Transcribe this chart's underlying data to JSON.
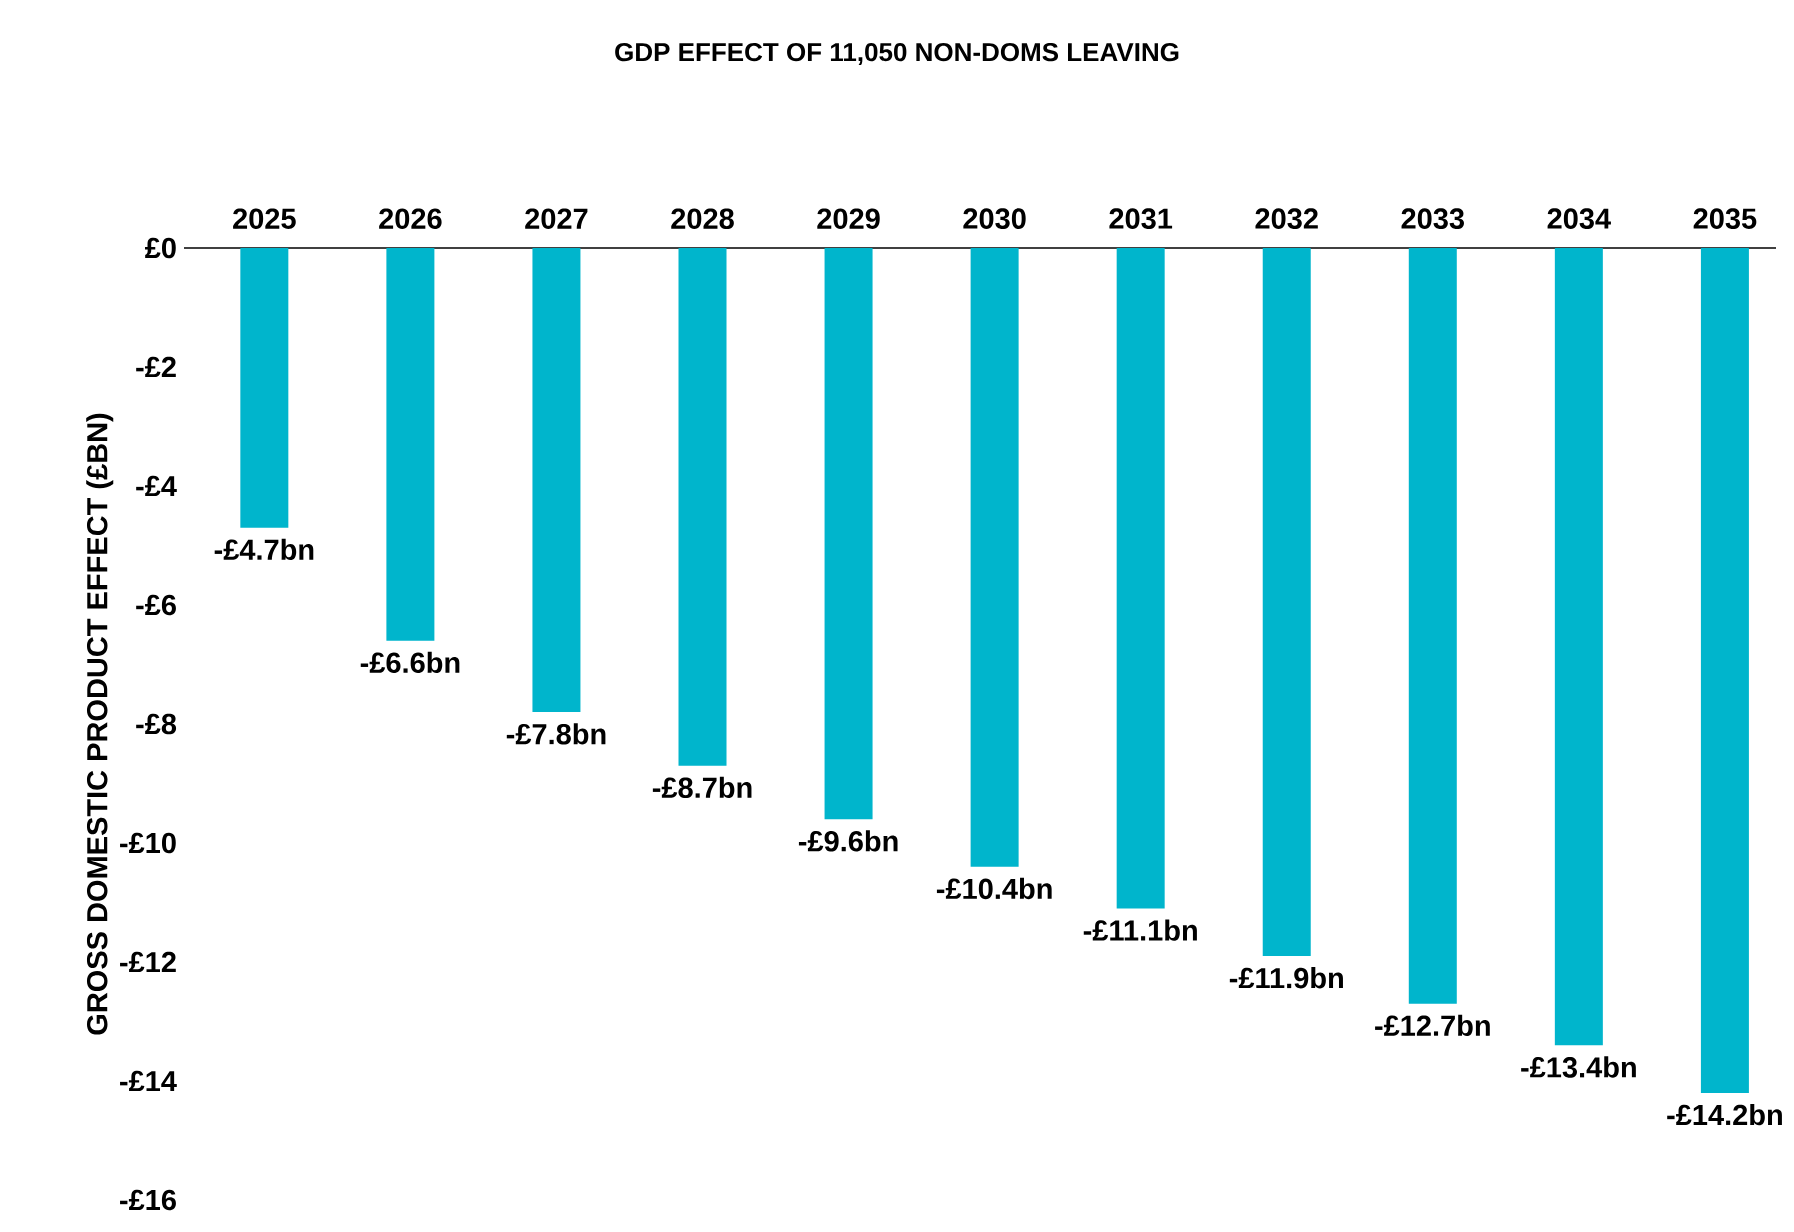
{
  "chart_data": {
    "type": "bar",
    "title": "GDP EFFECT OF 11,050 NON-DOMS LEAVING",
    "ylabel": "GROSS DOMESTIC PRODUCT EFFECT (£BN)",
    "categories": [
      "2025",
      "2026",
      "2027",
      "2028",
      "2029",
      "2030",
      "2031",
      "2032",
      "2033",
      "2034",
      "2035"
    ],
    "values": [
      -4.7,
      -6.6,
      -7.8,
      -8.7,
      -9.6,
      -10.4,
      -11.1,
      -11.9,
      -12.7,
      -13.4,
      -14.2
    ],
    "value_labels": [
      "-£4.7bn",
      "-£6.6bn",
      "-£7.8bn",
      "-£8.7bn",
      "-£9.6bn",
      "-£10.4bn",
      "-£11.1bn",
      "-£11.9bn",
      "-£12.7bn",
      "-£13.4bn",
      "-£14.2bn"
    ],
    "color": "#00b5cc",
    "ylim": [
      -16,
      0
    ],
    "yticks": [
      {
        "value": 0,
        "label": "£0"
      },
      {
        "value": -2,
        "label": "-£2"
      },
      {
        "value": -4,
        "label": "-£4"
      },
      {
        "value": -6,
        "label": "-£6"
      },
      {
        "value": -8,
        "label": "-£8"
      },
      {
        "value": -10,
        "label": "-£10"
      },
      {
        "value": -12,
        "label": "-£12"
      },
      {
        "value": -14,
        "label": "-£14"
      },
      {
        "value": -16,
        "label": "-£16"
      }
    ],
    "grid": false
  }
}
